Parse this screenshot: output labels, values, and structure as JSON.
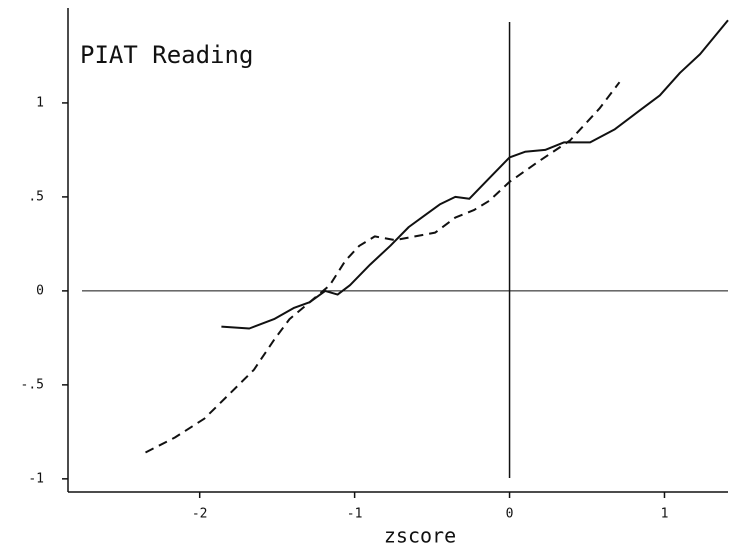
{
  "chart_data": {
    "type": "line",
    "title": "PIAT Reading",
    "x_label": "zscore",
    "xlim": [
      -2.85,
      1.41
    ],
    "ylim": [
      -1.07,
      1.505
    ],
    "xticks": [
      -2,
      -1,
      0,
      1
    ],
    "yticks": [
      {
        "value": -1,
        "label": "-1"
      },
      {
        "value": -0.5,
        "label": "-.5"
      },
      0,
      {
        "value": 0.5,
        "label": ".5"
      },
      1
    ],
    "reference_lines": {
      "x": 0,
      "y": 0
    },
    "series": [
      {
        "style": "solid",
        "color": "#111111",
        "x": [
          -1.86,
          -1.68,
          -1.52,
          -1.39,
          -1.29,
          -1.19,
          -1.11,
          -1.03,
          -0.9,
          -0.77,
          -0.65,
          -0.55,
          -0.45,
          -0.35,
          -0.26,
          -0.13,
          0,
          0.1,
          0.23,
          0.35,
          0.52,
          0.68,
          0.84,
          0.97,
          1.1,
          1.23,
          1.41
        ],
        "values": [
          -0.19,
          -0.2,
          -0.15,
          -0.09,
          -0.06,
          0,
          -0.02,
          0.03,
          0.14,
          0.24,
          0.34,
          0.4,
          0.46,
          0.5,
          0.49,
          0.6,
          0.71,
          0.74,
          0.75,
          0.79,
          0.79,
          0.86,
          0.96,
          1.04,
          1.16,
          1.26,
          1.44
        ]
      },
      {
        "style": "dashed",
        "color": "#111111",
        "x": [
          -2.35,
          -2.16,
          -1.97,
          -1.81,
          -1.65,
          -1.52,
          -1.42,
          -1.29,
          -1.16,
          -1.06,
          -0.97,
          -0.87,
          -0.74,
          -0.61,
          -0.48,
          -0.35,
          -0.23,
          -0.13,
          0,
          0.19,
          0.39,
          0.58,
          0.71
        ],
        "values": [
          -0.86,
          -0.78,
          -0.68,
          -0.55,
          -0.42,
          -0.26,
          -0.15,
          -0.06,
          0.03,
          0.16,
          0.24,
          0.29,
          0.27,
          0.29,
          0.31,
          0.39,
          0.43,
          0.48,
          0.58,
          0.69,
          0.8,
          0.97,
          1.11
        ]
      }
    ]
  }
}
